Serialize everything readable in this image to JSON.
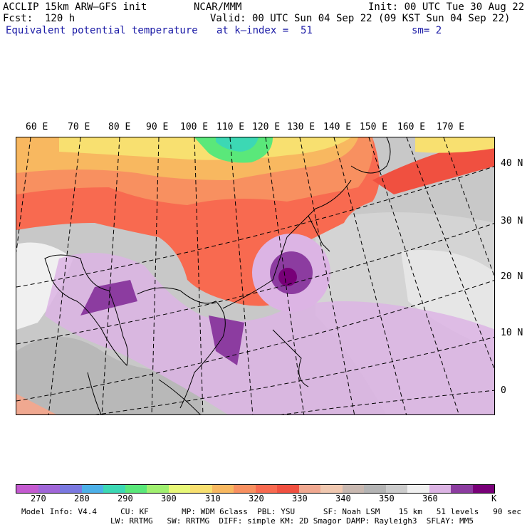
{
  "header": {
    "model": "ACCLIP 15km ARW–GFS init",
    "forecast": "Fcst:  120 h",
    "field": "Equivalent potential temperature",
    "center": "NCAR/MMM",
    "init": "Init: 00 UTC Tue 30 Aug 22",
    "valid": "Valid: 00 UTC Sun 04 Sep 22 (09 KST Sun 04 Sep 22)",
    "level": "at k–index =  51",
    "smooth": "sm= 2"
  },
  "map": {
    "lon_labels": [
      "60 E",
      "70 E",
      "80 E",
      "90 E",
      "100 E",
      "110 E",
      "120 E",
      "130 E",
      "140 E",
      "150 E",
      "160 E",
      "170 E"
    ],
    "lat_labels": [
      "40 N",
      "30 N",
      "20 N",
      "10 N",
      "0"
    ]
  },
  "colorbar": {
    "unit": "K",
    "ticks": [
      "270",
      "280",
      "290",
      "300",
      "310",
      "320",
      "330",
      "340",
      "350",
      "360"
    ],
    "colors": [
      "#c45ad0",
      "#a066d8",
      "#7a78e0",
      "#4cb0e8",
      "#3cd8b4",
      "#5ae87a",
      "#a0f070",
      "#e8f878",
      "#f8e070",
      "#f8b860",
      "#f89060",
      "#f86a50",
      "#f05040",
      "#f0a890",
      "#f0c8b0",
      "#c8b8b0",
      "#b4b4b4",
      "#cccccc",
      "#f0f0f0",
      "#dcb4e4",
      "#8c3ca0",
      "#780078"
    ]
  },
  "footer": {
    "line1": "Model Info: V4.4     CU: KF       MP: WDM 6class  PBL: YSU      SF: Noah LSM    15 km   51 levels   90 sec",
    "line2": "LW: RRTMG   SW: RRTMG  DIFF: simple KM: 2D Smagor DAMP: Rayleigh3  SFLAY: MM5"
  }
}
